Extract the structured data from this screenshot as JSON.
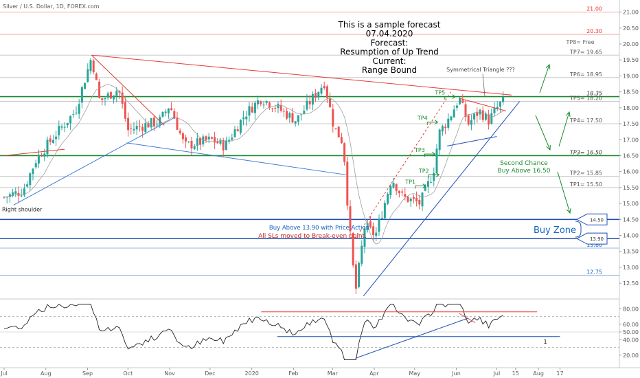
{
  "header": {
    "symbol_label": "Silver / U.S. Dollar, 1D, FOREX.com"
  },
  "forecast_box": {
    "lines": [
      "This is a sample forecast",
      "07.04.2020",
      "Forecast:",
      "Resumption of Up Trend",
      "Current:",
      "Range Bound"
    ]
  },
  "colors": {
    "up": "#26a69a",
    "down": "#ef5350",
    "green_line": "#1b8a2e",
    "blue_line": "#1e4fb4",
    "red_line": "#e53935",
    "text_blue": "#1565c0",
    "text_red": "#c62828"
  },
  "chart_data": [
    {
      "type": "candlestick",
      "title": "Silver / U.S. Dollar, 1D, FOREX.com",
      "xlabel": "",
      "ylabel": "",
      "x_ticks": [
        "Jul",
        "Aug",
        "Sep",
        "Oct",
        "Nov",
        "Dec",
        "2020",
        "Feb",
        "Mar",
        "Apr",
        "May",
        "Jun",
        "Jul",
        "15",
        "Aug",
        "17"
      ],
      "y_ticks": [
        "12.50",
        "13.00",
        "13.50",
        "14.00",
        "14.50",
        "15.00",
        "15.50",
        "16.00",
        "16.50",
        "17.00",
        "17.50",
        "18.00",
        "18.50",
        "19.00",
        "19.50",
        "20.00",
        "20.50",
        "21.00"
      ],
      "ylim": [
        12.05,
        21.25
      ],
      "waypoints": [
        {
          "date": "2019-07-01",
          "close": 15.2
        },
        {
          "date": "2019-07-15",
          "close": 15.4
        },
        {
          "date": "2019-07-25",
          "close": 16.4
        },
        {
          "date": "2019-08-07",
          "close": 17.1
        },
        {
          "date": "2019-08-23",
          "close": 17.9
        },
        {
          "date": "2019-09-04",
          "close": 19.6
        },
        {
          "date": "2019-09-10",
          "close": 18.2
        },
        {
          "date": "2019-09-24",
          "close": 18.6
        },
        {
          "date": "2019-10-01",
          "close": 17.3
        },
        {
          "date": "2019-10-25",
          "close": 17.6
        },
        {
          "date": "2019-11-01",
          "close": 18.1
        },
        {
          "date": "2019-11-12",
          "close": 16.8
        },
        {
          "date": "2019-12-02",
          "close": 17.0
        },
        {
          "date": "2019-12-12",
          "close": 16.8
        },
        {
          "date": "2019-12-27",
          "close": 17.8
        },
        {
          "date": "2020-01-08",
          "close": 18.3
        },
        {
          "date": "2020-01-20",
          "close": 18.0
        },
        {
          "date": "2020-02-03",
          "close": 17.6
        },
        {
          "date": "2020-02-24",
          "close": 18.8
        },
        {
          "date": "2020-03-02",
          "close": 17.4
        },
        {
          "date": "2020-03-09",
          "close": 16.9
        },
        {
          "date": "2020-03-13",
          "close": 14.5
        },
        {
          "date": "2020-03-18",
          "close": 12.2
        },
        {
          "date": "2020-03-25",
          "close": 14.3
        },
        {
          "date": "2020-04-02",
          "close": 14.0
        },
        {
          "date": "2020-04-14",
          "close": 15.8
        },
        {
          "date": "2020-04-22",
          "close": 15.2
        },
        {
          "date": "2020-05-05",
          "close": 15.0
        },
        {
          "date": "2020-05-15",
          "close": 16.0
        },
        {
          "date": "2020-05-19",
          "close": 17.2
        },
        {
          "date": "2020-05-27",
          "close": 17.7
        },
        {
          "date": "2020-06-03",
          "close": 18.3
        },
        {
          "date": "2020-06-10",
          "close": 17.5
        },
        {
          "date": "2020-06-18",
          "close": 17.9
        },
        {
          "date": "2020-06-25",
          "close": 17.6
        },
        {
          "date": "2020-07-03",
          "close": 18.1
        },
        {
          "date": "2020-07-06",
          "close": 18.2
        }
      ],
      "annotations": {
        "price_right": [
          "21.00",
          "20.30",
          "13.60",
          "12.75"
        ],
        "tp_labels": [
          "TP8= Free",
          "TP7= 19.65",
          "TP6= 18.95",
          "18.35",
          "TP5= 18.20",
          "TP4= 17.50",
          "TP3= 16.50",
          "TP2= 15.85",
          "TP1= 15.50"
        ],
        "chart_tp": [
          "TP5",
          "TP4",
          "TP3",
          "TP2",
          "TP1"
        ],
        "sym_triangle": "Symmetrical Triangle ???",
        "second_chance": [
          "Second Chance",
          "Buy Above 16.50"
        ],
        "buy_above": "Buy Above 13.90 with Price Action",
        "sl_text": "All SLs moved to Break-even point.",
        "buy_zone": "Buy Zone",
        "zone_tags": [
          "14.50",
          "13.90"
        ],
        "shoulder": "Right shoulder"
      }
    },
    {
      "type": "line",
      "name": "RSI",
      "ylim": [
        10,
        90
      ],
      "y_ticks": [
        "80.00",
        "60.00",
        "50.00",
        "40.00",
        "20.00"
      ],
      "label_1": "1"
    }
  ]
}
